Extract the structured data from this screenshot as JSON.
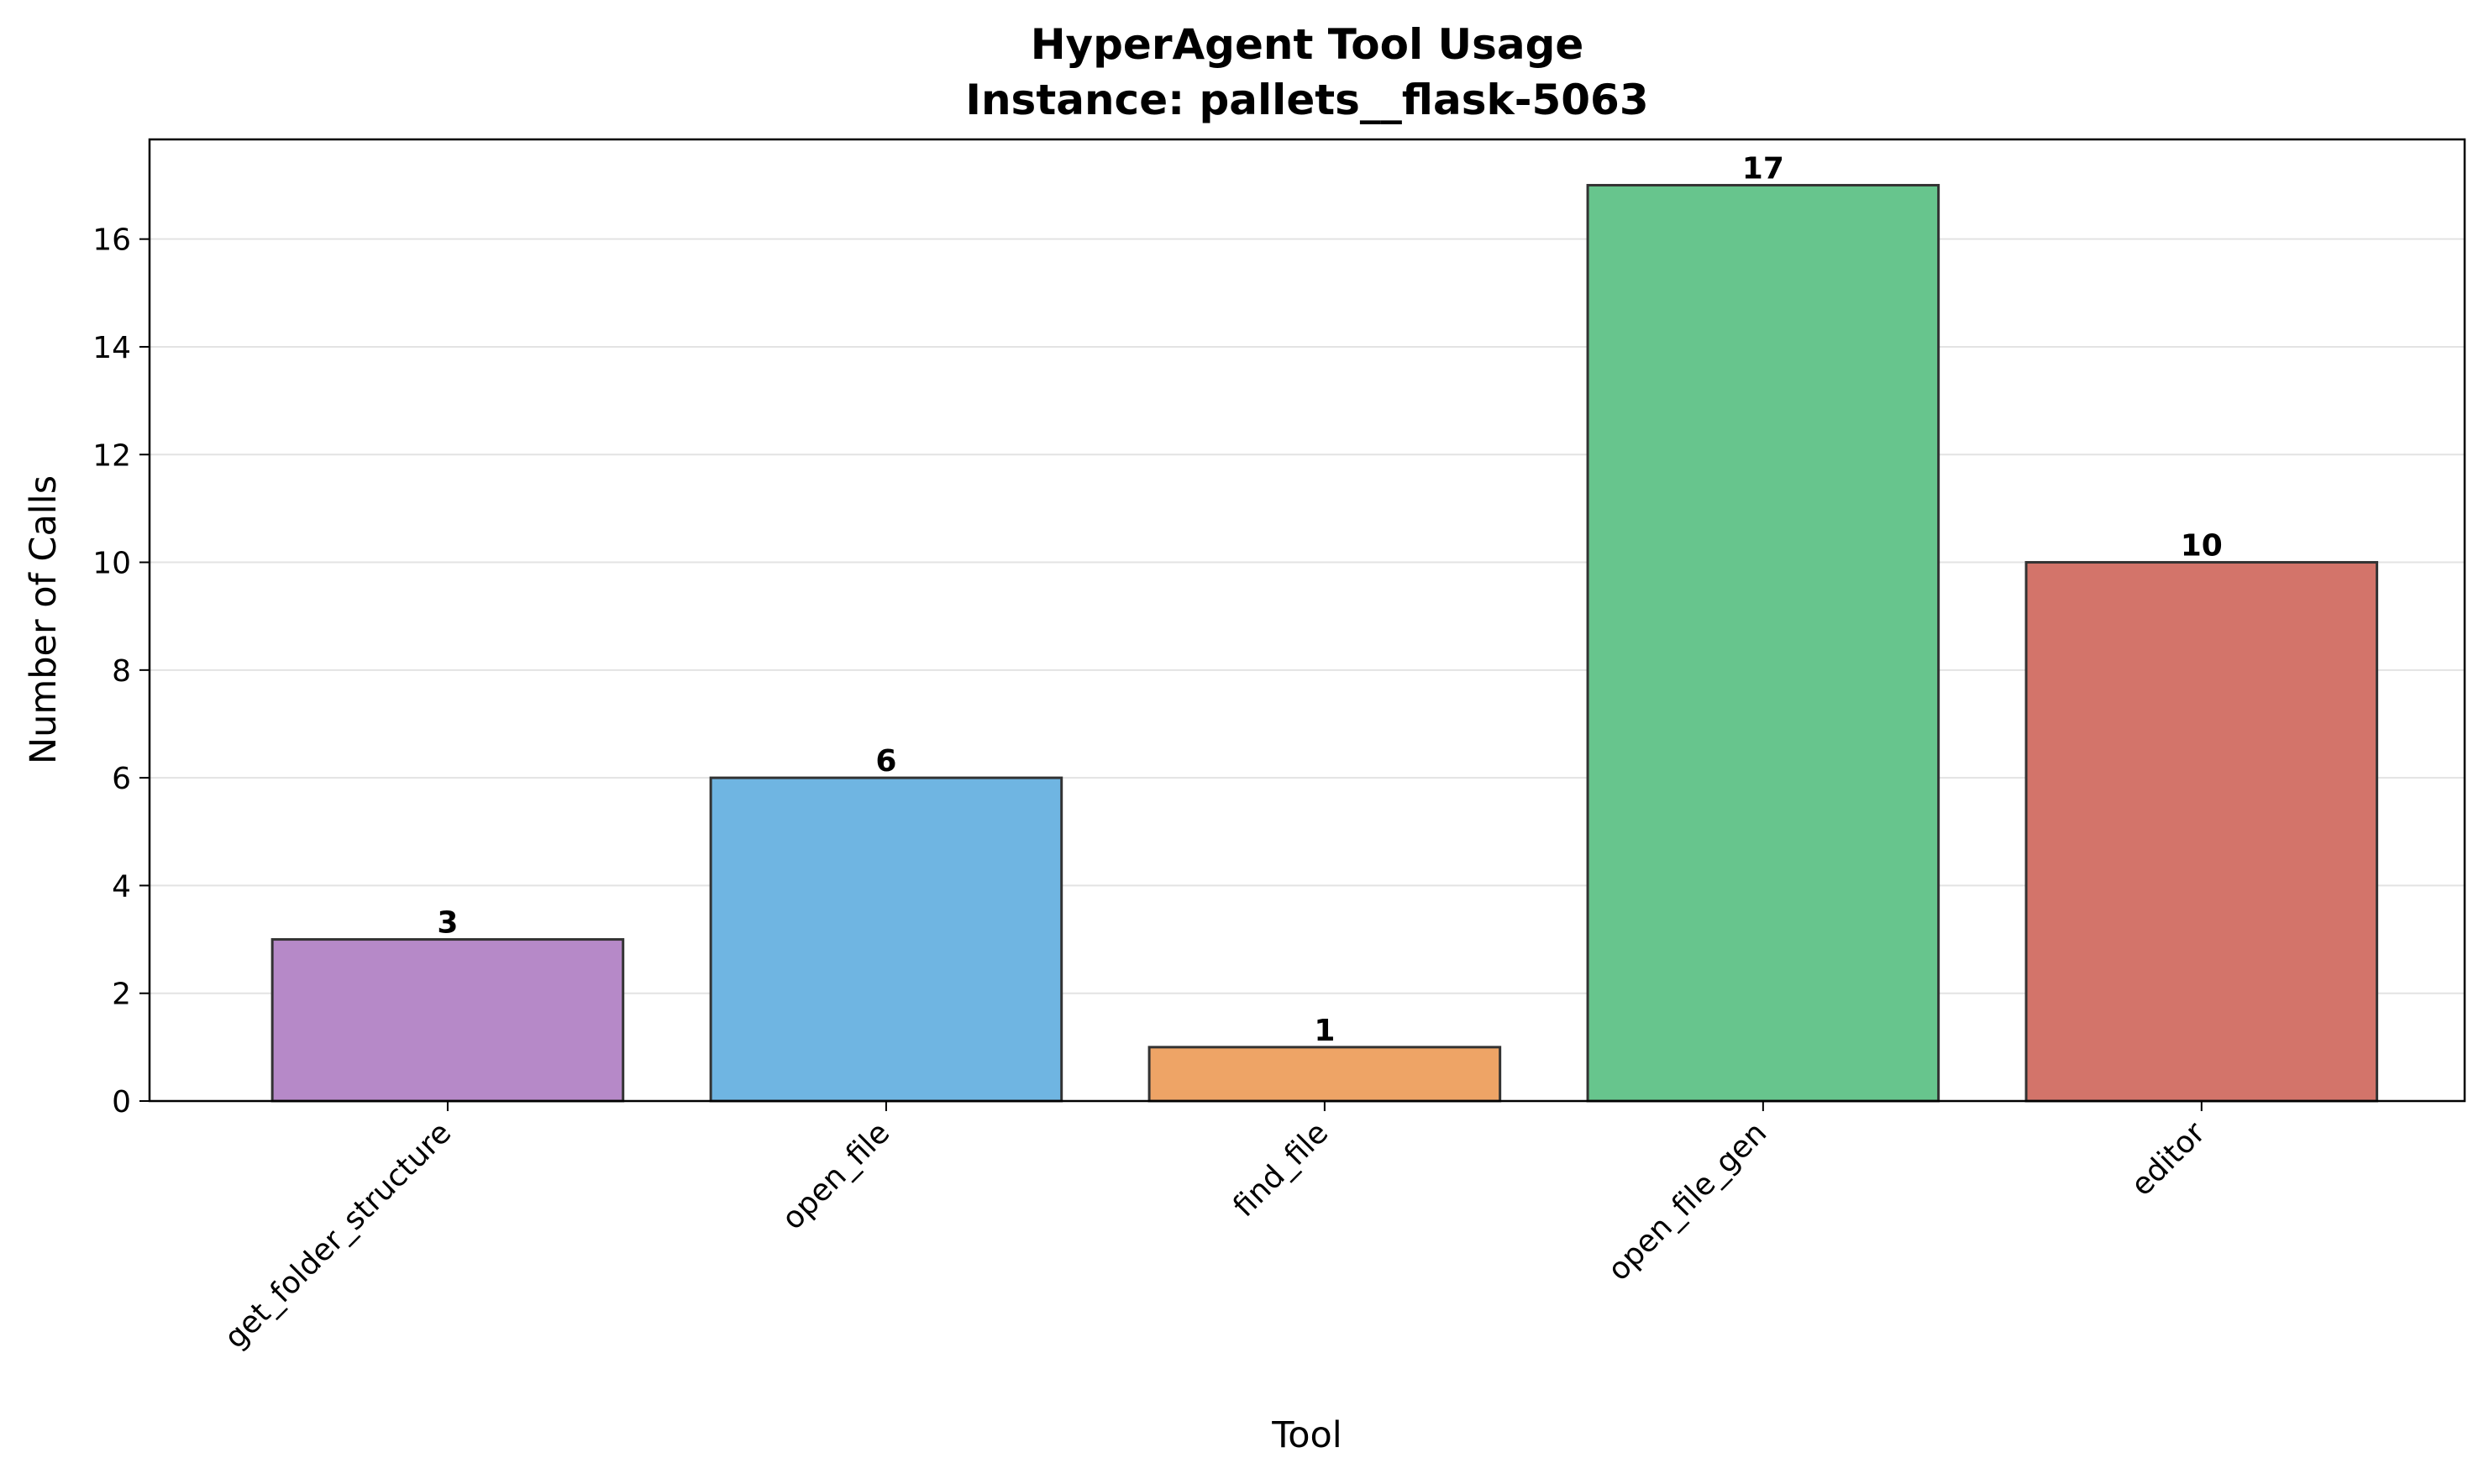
{
  "chart_data": {
    "type": "bar",
    "title": "HyperAgent Tool Usage",
    "subtitle": "Instance: pallets__flask-5063",
    "xlabel": "Tool",
    "ylabel": "Number of Calls",
    "categories": [
      "get_folder_structure",
      "open_file",
      "find_file",
      "open_file_gen",
      "editor"
    ],
    "values": [
      3,
      6,
      1,
      17,
      10
    ],
    "colors": [
      "#b689c8",
      "#6fb5e2",
      "#eea466",
      "#67c58d",
      "#d3746a"
    ],
    "bar_edge_color": "#333333",
    "yticks": [
      0,
      2,
      4,
      6,
      8,
      10,
      12,
      14,
      16
    ],
    "ylim": [
      0,
      17.85
    ],
    "grid": "horizontal",
    "legend": "none"
  }
}
